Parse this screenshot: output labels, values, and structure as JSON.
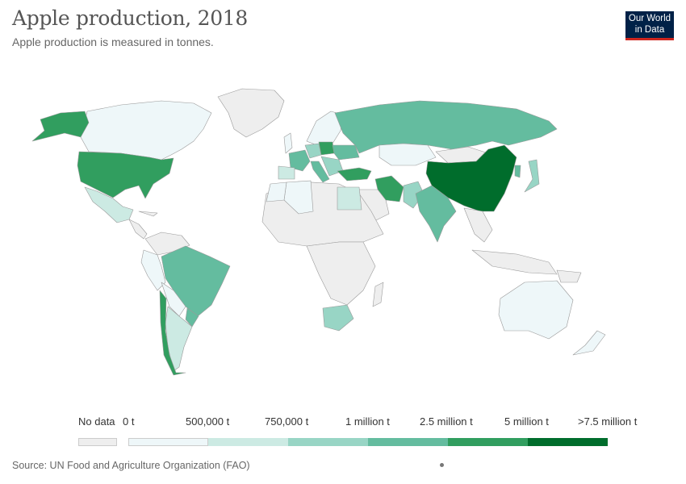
{
  "header": {
    "title": "Apple production, 2018",
    "subtitle": "Apple production is measured in tonnes."
  },
  "logo": {
    "line1": "Our World",
    "line2": "in Data"
  },
  "legend": {
    "no_data_label": "No data",
    "no_data_color": "#eeeeee",
    "breaks": [
      "0 t",
      "500,000 t",
      "750,000 t",
      "1 million t",
      "2.5 million t",
      "5 million t",
      ">7.5 million t"
    ],
    "colors": [
      "#eef7f9",
      "#cceae3",
      "#98d5c5",
      "#64bc9f",
      "#319e5f",
      "#006d2c"
    ]
  },
  "source": "Source: UN Food and Agriculture Organization (FAO)",
  "map_colors": {
    "no_data": "#eeeeee",
    "border": "#aaaaaa",
    "land_low": "#eef7f9",
    "land_mid": "#cceae3",
    "land_midhigh": "#98d5c5",
    "land_high": "#64bc9f",
    "land_top": "#319e5f",
    "land_max": "#006d2c"
  }
}
